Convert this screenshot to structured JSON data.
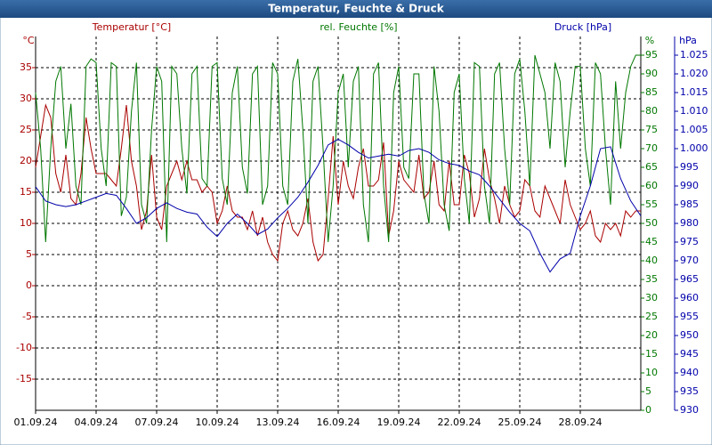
{
  "chart_data": {
    "type": "line",
    "title": "Temperatur, Feuchte & Druck",
    "ylabel": "°C",
    "y2label": "%",
    "y3label": "hPa",
    "grid": true,
    "xlim": [
      0,
      30
    ],
    "xticks": [
      {
        "value": 0,
        "label": "01.09.24"
      },
      {
        "value": 3,
        "label": "04.09.24"
      },
      {
        "value": 6,
        "label": "07.09.24"
      },
      {
        "value": 9,
        "label": "10.09.24"
      },
      {
        "value": 12,
        "label": "13.09.24"
      },
      {
        "value": 15,
        "label": "16.09.24"
      },
      {
        "value": 18,
        "label": "19.09.24"
      },
      {
        "value": 21,
        "label": "22.09.24"
      },
      {
        "value": 24,
        "label": "25.09.24"
      },
      {
        "value": 27,
        "label": "28.09.24"
      }
    ],
    "ylim": [
      -20,
      40
    ],
    "yticks": [
      -15,
      -10,
      -5,
      0,
      5,
      10,
      15,
      20,
      25,
      30,
      35
    ],
    "y2lim": [
      0,
      100
    ],
    "y2ticks": [
      0,
      5,
      10,
      15,
      20,
      25,
      30,
      35,
      40,
      45,
      50,
      55,
      60,
      65,
      70,
      75,
      80,
      85,
      90,
      95
    ],
    "y3lim": [
      930,
      1030
    ],
    "y3ticks": [
      930,
      935,
      940,
      945,
      950,
      955,
      960,
      965,
      970,
      975,
      980,
      985,
      990,
      995,
      {
        "value": 1000,
        "label": "1.000"
      },
      {
        "value": 1005,
        "label": "1.005"
      },
      {
        "value": 1010,
        "label": "1.010"
      },
      {
        "value": 1015,
        "label": "1.015"
      },
      {
        "value": 1020,
        "label": "1.020"
      },
      {
        "value": 1025,
        "label": "1.025"
      }
    ],
    "x": [
      0,
      0.25,
      0.5,
      0.75,
      1,
      1.25,
      1.5,
      1.75,
      2,
      2.25,
      2.5,
      2.75,
      3,
      3.25,
      3.5,
      3.75,
      4,
      4.25,
      4.5,
      4.75,
      5,
      5.25,
      5.5,
      5.75,
      6,
      6.25,
      6.5,
      6.75,
      7,
      7.25,
      7.5,
      7.75,
      8,
      8.25,
      8.5,
      8.75,
      9,
      9.25,
      9.5,
      9.75,
      10,
      10.25,
      10.5,
      10.75,
      11,
      11.25,
      11.5,
      11.75,
      12,
      12.25,
      12.5,
      12.75,
      13,
      13.25,
      13.5,
      13.75,
      14,
      14.25,
      14.5,
      14.75,
      15,
      15.25,
      15.5,
      15.75,
      16,
      16.25,
      16.5,
      16.75,
      17,
      17.25,
      17.5,
      17.75,
      18,
      18.25,
      18.5,
      18.75,
      19,
      19.25,
      19.5,
      19.75,
      20,
      20.25,
      20.5,
      20.75,
      21,
      21.25,
      21.5,
      21.75,
      22,
      22.25,
      22.5,
      22.75,
      23,
      23.25,
      23.5,
      23.75,
      24,
      24.25,
      24.5,
      24.75,
      25,
      25.25,
      25.5,
      25.75,
      26,
      26.25,
      26.5,
      26.75,
      27,
      27.25,
      27.5,
      27.75,
      28,
      28.25,
      28.5,
      28.75,
      29,
      29.25,
      29.5,
      29.75,
      30
    ],
    "series": [
      {
        "name": "Temperatur [°C]",
        "color": "#aa0000",
        "axis": "y",
        "values": [
          19,
          24,
          29,
          27,
          18,
          15,
          21,
          14,
          13,
          18,
          27,
          22,
          18,
          18,
          18,
          17,
          16,
          22,
          29,
          20,
          16,
          9,
          12,
          21,
          11,
          9,
          16,
          18,
          20,
          17,
          20,
          17,
          17,
          15,
          16,
          15,
          10,
          12,
          16,
          12,
          11,
          11,
          9,
          12,
          8,
          11,
          7,
          5,
          4,
          10,
          12,
          9,
          8,
          10,
          14,
          7,
          4,
          5,
          14,
          24,
          13,
          20,
          16,
          14,
          19,
          22,
          16,
          16,
          17,
          23,
          8,
          12,
          20,
          17,
          16,
          15,
          21,
          14,
          15,
          20,
          13,
          12,
          20,
          13,
          13,
          21,
          18,
          11,
          14,
          22,
          17,
          14,
          10,
          16,
          13,
          11,
          12,
          17,
          16,
          12,
          11,
          16,
          14,
          12,
          10,
          17,
          13,
          11,
          9,
          10,
          12,
          8,
          7,
          10,
          9,
          10,
          8,
          12,
          11,
          12,
          12
        ]
      },
      {
        "name": "rel. Feuchte [%]",
        "color": "#007700",
        "axis": "y2",
        "values": [
          85,
          70,
          45,
          70,
          88,
          92,
          70,
          82,
          60,
          55,
          92,
          94,
          93,
          70,
          60,
          93,
          92,
          52,
          57,
          80,
          93,
          55,
          50,
          75,
          92,
          88,
          45,
          92,
          90,
          70,
          58,
          90,
          92,
          62,
          60,
          92,
          93,
          62,
          55,
          85,
          92,
          65,
          58,
          90,
          92,
          55,
          60,
          93,
          90,
          60,
          55,
          88,
          94,
          75,
          50,
          88,
          92,
          70,
          45,
          60,
          85,
          90,
          65,
          88,
          92,
          55,
          45,
          90,
          93,
          60,
          45,
          85,
          92,
          65,
          62,
          90,
          90,
          58,
          50,
          92,
          80,
          55,
          48,
          85,
          90,
          62,
          50,
          93,
          92,
          60,
          50,
          90,
          93,
          70,
          55,
          90,
          94,
          80,
          60,
          95,
          90,
          85,
          70,
          93,
          88,
          65,
          80,
          92,
          92,
          70,
          60,
          93,
          90,
          70,
          55,
          88,
          70,
          85,
          92,
          95,
          95
        ]
      },
      {
        "name": "Druck [hPa]",
        "color": "#0000aa",
        "axis": "y3",
        "x": [
          0,
          0.5,
          1,
          1.5,
          2,
          2.5,
          3,
          3.5,
          4,
          4.5,
          5,
          5.5,
          6,
          6.5,
          7,
          7.5,
          8,
          8.5,
          9,
          9.5,
          10,
          10.5,
          11,
          11.5,
          12,
          12.5,
          13,
          13.5,
          14,
          14.5,
          15,
          15.5,
          16,
          16.5,
          17,
          17.5,
          18,
          18.5,
          19,
          19.5,
          20,
          20.5,
          21,
          21.5,
          22,
          22.5,
          23,
          23.5,
          24,
          24.5,
          25,
          25.5,
          26,
          26.5,
          27,
          27.5,
          28,
          28.5,
          29,
          29.5,
          30
        ],
        "values": [
          989.8,
          986,
          985,
          984.5,
          985,
          986,
          987,
          988,
          987.5,
          984,
          980,
          981.5,
          984,
          985.5,
          984,
          983,
          982.5,
          979,
          976.5,
          980,
          982.5,
          980,
          977,
          978.5,
          981.5,
          984,
          987,
          991,
          995.5,
          1001,
          1002.5,
          1001,
          999,
          997.5,
          998,
          998.5,
          998,
          999.5,
          1000,
          999,
          997,
          996,
          995.5,
          994,
          993,
          990,
          986.5,
          983,
          980,
          978,
          972,
          967,
          970.5,
          972,
          982,
          990,
          1000,
          1000.5,
          992,
          986,
          982
        ]
      }
    ]
  }
}
